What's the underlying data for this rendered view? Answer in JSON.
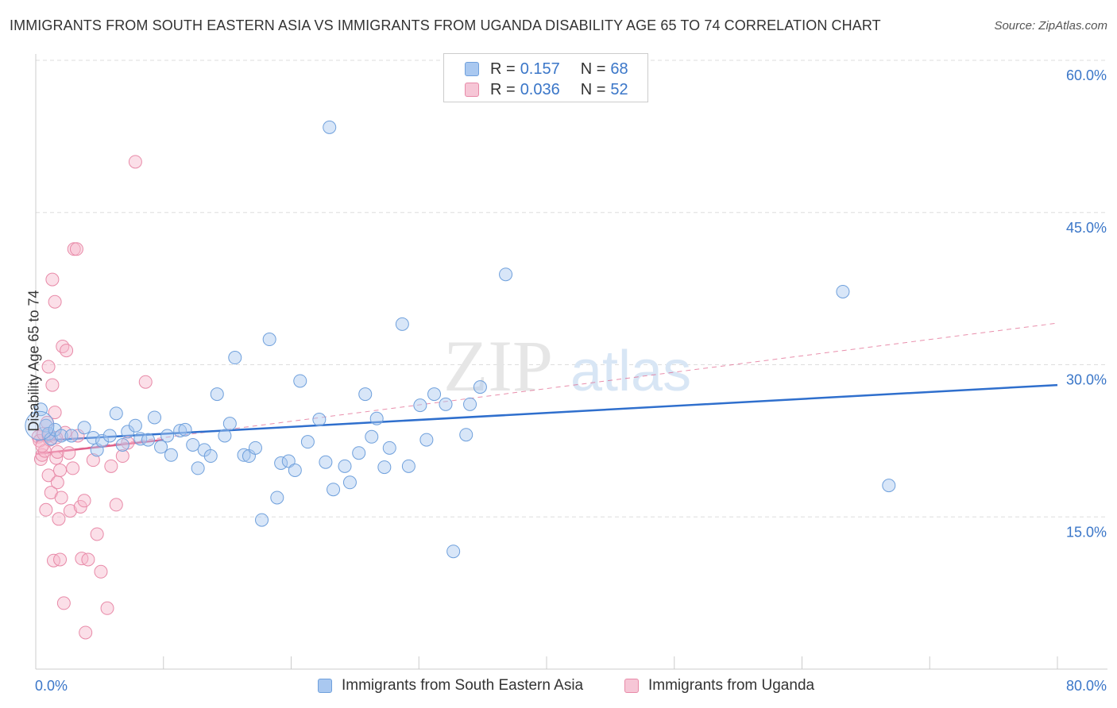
{
  "header": {
    "title": "IMMIGRANTS FROM SOUTH EASTERN ASIA VS IMMIGRANTS FROM UGANDA DISABILITY AGE 65 TO 74 CORRELATION CHART",
    "source": "Source: ZipAtlas.com"
  },
  "watermark": {
    "zip": "ZIP",
    "atlas": "atlas"
  },
  "legend": {
    "row1": {
      "r_label": "R =",
      "r_value": "0.157",
      "n_label": "N =",
      "n_value": "68"
    },
    "row2": {
      "r_label": "R =",
      "r_value": "0.036",
      "n_label": "N =",
      "n_value": "52"
    }
  },
  "bottom_legend": {
    "series1": "Immigrants from South Eastern Asia",
    "series2": "Immigrants from Uganda"
  },
  "colors": {
    "blue_fill": "#a9c8f0",
    "blue_stroke": "#6fa0dc",
    "blue_line": "#2f6fcd",
    "pink_fill": "#f6b8cc",
    "pink_stroke": "#e88aa8",
    "pink_line": "#e0608a",
    "axis_text": "#3a76c8",
    "grid": "#dddddd"
  },
  "chart_data": {
    "type": "scatter",
    "title": "IMMIGRANTS FROM SOUTH EASTERN ASIA VS IMMIGRANTS FROM UGANDA DISABILITY AGE 65 TO 74 CORRELATION CHART",
    "xlabel": "",
    "ylabel": "Disability Age 65 to 74",
    "xlim": [
      0,
      80
    ],
    "ylim": [
      0,
      60
    ],
    "x_tick_labels": [
      "0.0%",
      "80.0%"
    ],
    "y_ticks": [
      15,
      30,
      45,
      60
    ],
    "y_tick_labels": [
      "15.0%",
      "30.0%",
      "45.0%",
      "60.0%"
    ],
    "series": [
      {
        "name": "Immigrants from South Eastern Asia",
        "color": "blue",
        "r": 0.157,
        "n": 68,
        "trend": {
          "x": [
            0,
            80
          ],
          "y": [
            22.5,
            28.0
          ],
          "style": "solid"
        },
        "points": [
          [
            0.4,
            25.6
          ],
          [
            0.8,
            24.0
          ],
          [
            1.0,
            23.2
          ],
          [
            1.2,
            22.7
          ],
          [
            1.5,
            23.6
          ],
          [
            2.0,
            23.0
          ],
          [
            2.8,
            23.0
          ],
          [
            3.8,
            23.8
          ],
          [
            4.5,
            22.8
          ],
          [
            4.8,
            21.6
          ],
          [
            5.2,
            22.5
          ],
          [
            5.8,
            23.0
          ],
          [
            6.3,
            25.2
          ],
          [
            6.8,
            22.1
          ],
          [
            7.2,
            23.4
          ],
          [
            7.8,
            24.0
          ],
          [
            8.2,
            22.7
          ],
          [
            8.8,
            22.6
          ],
          [
            9.3,
            24.8
          ],
          [
            9.8,
            21.9
          ],
          [
            10.3,
            23.0
          ],
          [
            10.6,
            21.1
          ],
          [
            11.3,
            23.5
          ],
          [
            11.7,
            23.6
          ],
          [
            12.3,
            22.1
          ],
          [
            12.7,
            19.8
          ],
          [
            13.2,
            21.6
          ],
          [
            13.7,
            21.0
          ],
          [
            14.2,
            27.1
          ],
          [
            14.8,
            23.0
          ],
          [
            15.2,
            24.2
          ],
          [
            15.6,
            30.7
          ],
          [
            16.3,
            21.1
          ],
          [
            16.7,
            21.0
          ],
          [
            17.2,
            21.8
          ],
          [
            17.7,
            14.7
          ],
          [
            18.3,
            32.5
          ],
          [
            18.9,
            16.9
          ],
          [
            19.2,
            20.3
          ],
          [
            19.8,
            20.5
          ],
          [
            20.3,
            19.6
          ],
          [
            20.7,
            28.4
          ],
          [
            21.3,
            22.4
          ],
          [
            22.2,
            24.6
          ],
          [
            22.7,
            20.4
          ],
          [
            23.0,
            53.4
          ],
          [
            23.3,
            17.7
          ],
          [
            24.2,
            20.0
          ],
          [
            24.6,
            18.4
          ],
          [
            25.3,
            21.3
          ],
          [
            25.8,
            27.1
          ],
          [
            26.3,
            22.9
          ],
          [
            26.7,
            24.7
          ],
          [
            27.3,
            19.9
          ],
          [
            27.7,
            21.8
          ],
          [
            28.7,
            34.0
          ],
          [
            29.2,
            20.0
          ],
          [
            30.1,
            26.0
          ],
          [
            30.6,
            22.6
          ],
          [
            31.2,
            27.1
          ],
          [
            32.1,
            26.1
          ],
          [
            32.7,
            11.6
          ],
          [
            33.7,
            23.1
          ],
          [
            34.0,
            26.1
          ],
          [
            34.8,
            27.8
          ],
          [
            36.8,
            38.9
          ],
          [
            63.2,
            37.2
          ],
          [
            66.8,
            18.1
          ]
        ]
      },
      {
        "name": "Immigrants from Uganda",
        "color": "pink",
        "r": 0.036,
        "n": 52,
        "trend_solid": {
          "x": [
            0,
            10
          ],
          "y": [
            21.2,
            22.6
          ],
          "style": "solid"
        },
        "trend": {
          "x": [
            0,
            80
          ],
          "y": [
            21.2,
            34.1
          ],
          "style": "dashed"
        },
        "points": [
          [
            0.2,
            22.9
          ],
          [
            0.3,
            22.5
          ],
          [
            0.4,
            20.7
          ],
          [
            0.5,
            21.1
          ],
          [
            0.6,
            23.2
          ],
          [
            0.7,
            21.5
          ],
          [
            0.8,
            15.7
          ],
          [
            0.9,
            24.3
          ],
          [
            1.0,
            19.1
          ],
          [
            1.0,
            29.8
          ],
          [
            1.1,
            22.6
          ],
          [
            1.2,
            17.4
          ],
          [
            1.3,
            28.0
          ],
          [
            1.3,
            38.4
          ],
          [
            1.4,
            10.7
          ],
          [
            1.5,
            25.3
          ],
          [
            1.5,
            36.2
          ],
          [
            1.6,
            20.8
          ],
          [
            1.7,
            21.4
          ],
          [
            1.7,
            18.4
          ],
          [
            1.8,
            14.8
          ],
          [
            1.9,
            19.6
          ],
          [
            1.9,
            10.8
          ],
          [
            2.0,
            16.9
          ],
          [
            2.1,
            31.8
          ],
          [
            2.2,
            6.5
          ],
          [
            2.3,
            23.3
          ],
          [
            2.4,
            31.4
          ],
          [
            2.6,
            21.3
          ],
          [
            2.7,
            15.6
          ],
          [
            2.9,
            19.8
          ],
          [
            3.0,
            41.4
          ],
          [
            3.2,
            41.4
          ],
          [
            3.3,
            23.0
          ],
          [
            3.5,
            16.0
          ],
          [
            3.6,
            10.9
          ],
          [
            3.8,
            16.6
          ],
          [
            3.9,
            3.6
          ],
          [
            4.1,
            10.8
          ],
          [
            4.5,
            20.6
          ],
          [
            4.8,
            13.3
          ],
          [
            5.1,
            9.6
          ],
          [
            5.6,
            6.0
          ],
          [
            5.9,
            20.0
          ],
          [
            6.3,
            16.2
          ],
          [
            6.8,
            21.0
          ],
          [
            7.2,
            22.3
          ],
          [
            7.8,
            50.0
          ],
          [
            8.6,
            28.3
          ],
          [
            0.5,
            22.0
          ],
          [
            1.0,
            23.0
          ],
          [
            1.6,
            22.8
          ]
        ]
      }
    ]
  }
}
